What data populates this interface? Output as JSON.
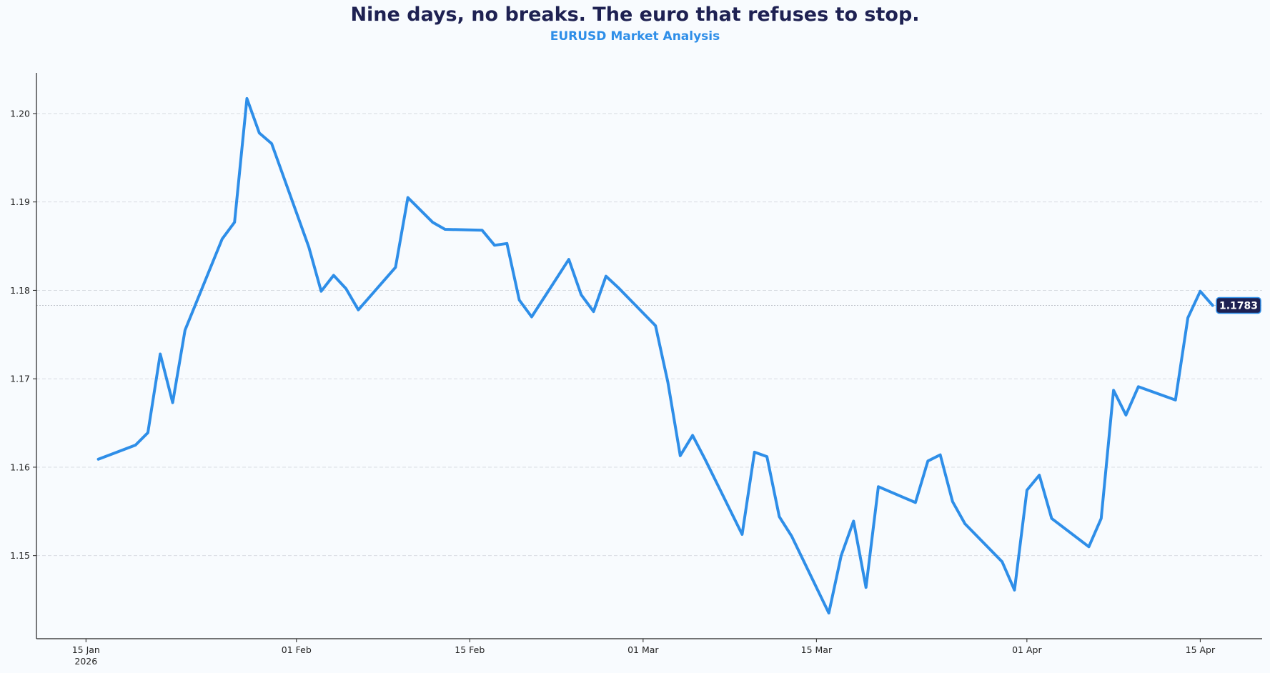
{
  "chart_data": {
    "type": "line",
    "title": "Nine days, no breaks. The euro that refuses to stop.",
    "subtitle": "EURUSD Market Analysis",
    "xlabel": "",
    "ylabel": "",
    "xlim": [
      "2026-01-11",
      "2026-04-20"
    ],
    "ylim": [
      1.1406,
      1.2046
    ],
    "grid": "horizontal dashed",
    "line_color": "#2e8ee8",
    "x_ticks": [
      {
        "date": "2026-01-15",
        "label": "15 Jan",
        "sublabel": "2026"
      },
      {
        "date": "2026-02-01",
        "label": "01 Feb"
      },
      {
        "date": "2026-02-15",
        "label": "15 Feb"
      },
      {
        "date": "2026-03-01",
        "label": "01 Mar"
      },
      {
        "date": "2026-03-15",
        "label": "15 Mar"
      },
      {
        "date": "2026-04-01",
        "label": "01 Apr"
      },
      {
        "date": "2026-04-15",
        "label": "15 Apr"
      }
    ],
    "y_ticks": [
      {
        "value": 1.15,
        "label": "1.15"
      },
      {
        "value": 1.16,
        "label": "1.16"
      },
      {
        "value": 1.17,
        "label": "1.17"
      },
      {
        "value": 1.18,
        "label": "1.18"
      },
      {
        "value": 1.19,
        "label": "1.19"
      },
      {
        "value": 1.2,
        "label": "1.20"
      }
    ],
    "last_value": {
      "value": 1.1783,
      "label": "1.1783",
      "bg": "#1e2152"
    },
    "series": [
      {
        "name": "EURUSD",
        "x": [
          "2026-01-16",
          "2026-01-19",
          "2026-01-20",
          "2026-01-21",
          "2026-01-22",
          "2026-01-23",
          "2026-01-26",
          "2026-01-27",
          "2026-01-28",
          "2026-01-29",
          "2026-01-30",
          "2026-02-02",
          "2026-02-03",
          "2026-02-04",
          "2026-02-05",
          "2026-02-06",
          "2026-02-09",
          "2026-02-10",
          "2026-02-11",
          "2026-02-12",
          "2026-02-13",
          "2026-02-16",
          "2026-02-17",
          "2026-02-18",
          "2026-02-19",
          "2026-02-20",
          "2026-02-23",
          "2026-02-24",
          "2026-02-25",
          "2026-02-26",
          "2026-02-27",
          "2026-03-02",
          "2026-03-03",
          "2026-03-04",
          "2026-03-05",
          "2026-03-06",
          "2026-03-09",
          "2026-03-10",
          "2026-03-11",
          "2026-03-12",
          "2026-03-13",
          "2026-03-16",
          "2026-03-17",
          "2026-03-18",
          "2026-03-19",
          "2026-03-20",
          "2026-03-23",
          "2026-03-24",
          "2026-03-25",
          "2026-03-26",
          "2026-03-27",
          "2026-03-30",
          "2026-03-31",
          "2026-04-01",
          "2026-04-02",
          "2026-04-03",
          "2026-04-06",
          "2026-04-07",
          "2026-04-08",
          "2026-04-09",
          "2026-04-10",
          "2026-04-13",
          "2026-04-14",
          "2026-04-15",
          "2026-04-16"
        ],
        "values": [
          1.1609,
          1.1625,
          1.1639,
          1.1728,
          1.1673,
          1.1755,
          1.1858,
          1.1877,
          1.2017,
          1.1978,
          1.1966,
          1.1849,
          1.1799,
          1.1817,
          1.1802,
          1.1778,
          1.1826,
          1.1905,
          1.1891,
          1.1877,
          1.1869,
          1.1868,
          1.1851,
          1.1853,
          1.1789,
          1.177,
          1.1835,
          1.1795,
          1.1776,
          1.1816,
          1.1803,
          1.176,
          1.1696,
          1.1613,
          1.1636,
          1.1609,
          1.1524,
          1.1617,
          1.1612,
          1.1544,
          1.1522,
          1.1435,
          1.15,
          1.1539,
          1.1464,
          1.1578,
          1.156,
          1.1607,
          1.1614,
          1.1561,
          1.1536,
          1.1493,
          1.1461,
          1.1574,
          1.1591,
          1.1542,
          1.151,
          1.1542,
          1.1687,
          1.1659,
          1.1691,
          1.1676,
          1.1769,
          1.1799,
          1.1783
        ]
      }
    ]
  }
}
